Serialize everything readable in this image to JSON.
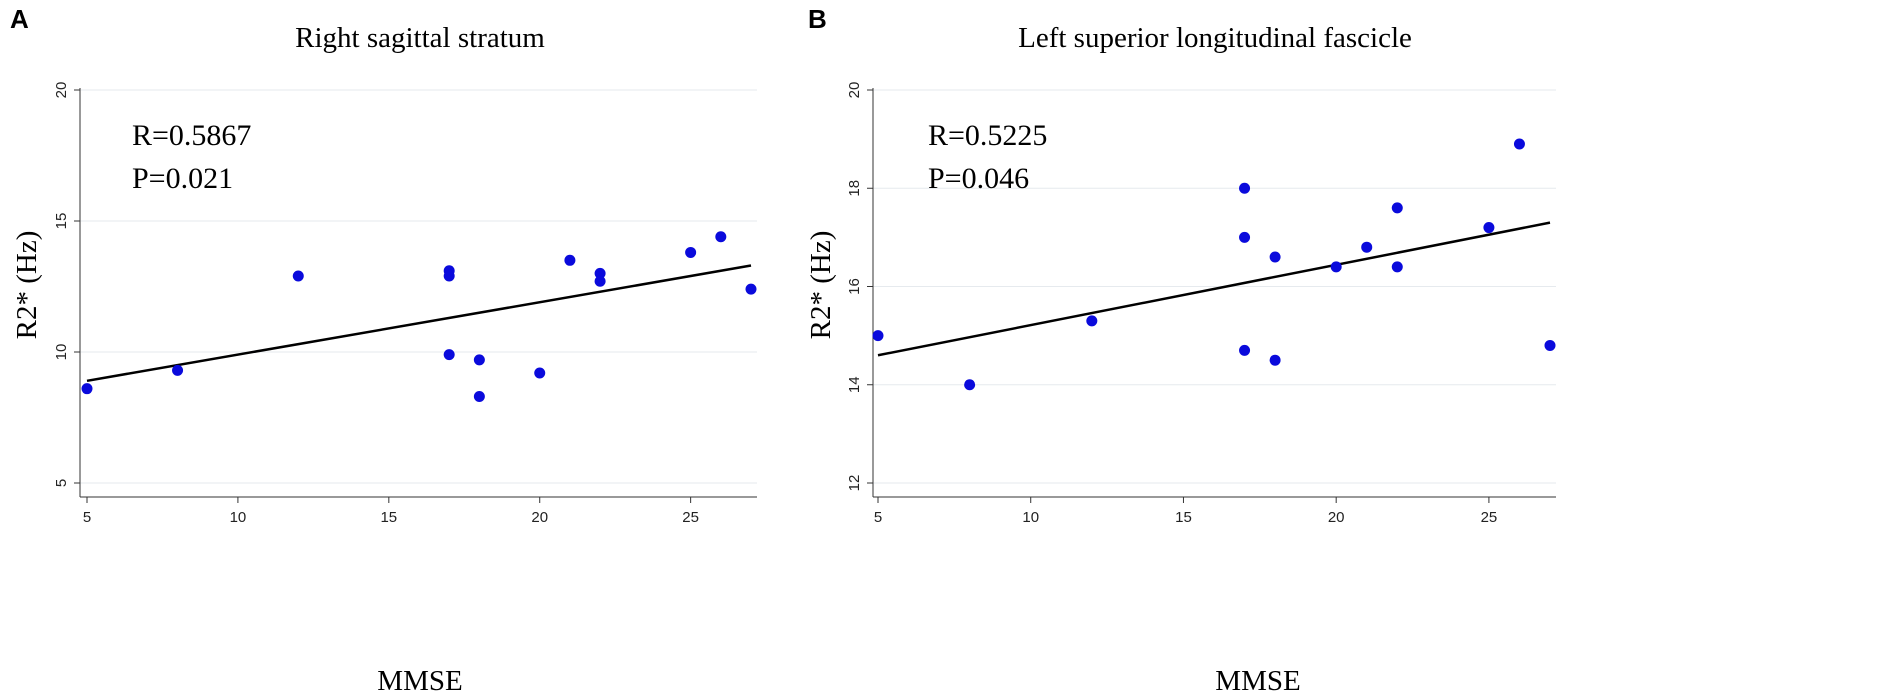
{
  "chart_data": [
    {
      "type": "scatter",
      "panel": "A",
      "title": "Right sagittal stratum",
      "xlabel": "MMSE",
      "ylabel": "R2* (Hz)",
      "xlim": [
        5,
        27
      ],
      "ylim": [
        5,
        20
      ],
      "xticks": [
        5,
        10,
        15,
        20,
        25
      ],
      "yticks": [
        5,
        10,
        15,
        20
      ],
      "stats": [
        "R=0.5867",
        "P=0.021"
      ],
      "points": [
        {
          "x": 5,
          "y": 8.6
        },
        {
          "x": 8,
          "y": 9.3
        },
        {
          "x": 12,
          "y": 12.9
        },
        {
          "x": 17,
          "y": 13.1
        },
        {
          "x": 17,
          "y": 12.9
        },
        {
          "x": 17,
          "y": 9.9
        },
        {
          "x": 18,
          "y": 9.7
        },
        {
          "x": 18,
          "y": 8.3
        },
        {
          "x": 20,
          "y": 9.2
        },
        {
          "x": 21,
          "y": 13.5
        },
        {
          "x": 22,
          "y": 13.0
        },
        {
          "x": 22,
          "y": 12.7
        },
        {
          "x": 25,
          "y": 13.8
        },
        {
          "x": 26,
          "y": 14.4
        },
        {
          "x": 27,
          "y": 12.4
        }
      ],
      "fit_line": {
        "x": [
          5,
          27
        ],
        "y": [
          8.9,
          13.3
        ]
      }
    },
    {
      "type": "scatter",
      "panel": "B",
      "title": "Left superior longitudinal fascicle",
      "xlabel": "MMSE",
      "ylabel": "R2* (Hz)",
      "xlim": [
        5,
        27
      ],
      "ylim": [
        12,
        20
      ],
      "xticks": [
        5,
        10,
        15,
        20,
        25
      ],
      "yticks": [
        12,
        14,
        16,
        18,
        20
      ],
      "stats": [
        "R=0.5225",
        "P=0.046"
      ],
      "points": [
        {
          "x": 5,
          "y": 15.0
        },
        {
          "x": 8,
          "y": 14.0
        },
        {
          "x": 12,
          "y": 15.3
        },
        {
          "x": 17,
          "y": 18.0
        },
        {
          "x": 17,
          "y": 17.0
        },
        {
          "x": 17,
          "y": 14.7
        },
        {
          "x": 18,
          "y": 16.6
        },
        {
          "x": 18,
          "y": 14.5
        },
        {
          "x": 20,
          "y": 16.4
        },
        {
          "x": 21,
          "y": 16.8
        },
        {
          "x": 22,
          "y": 17.6
        },
        {
          "x": 22,
          "y": 16.4
        },
        {
          "x": 25,
          "y": 17.2
        },
        {
          "x": 26,
          "y": 18.9
        },
        {
          "x": 27,
          "y": 14.8
        }
      ],
      "fit_line": {
        "x": [
          5,
          27
        ],
        "y": [
          14.6,
          17.3
        ]
      }
    }
  ]
}
